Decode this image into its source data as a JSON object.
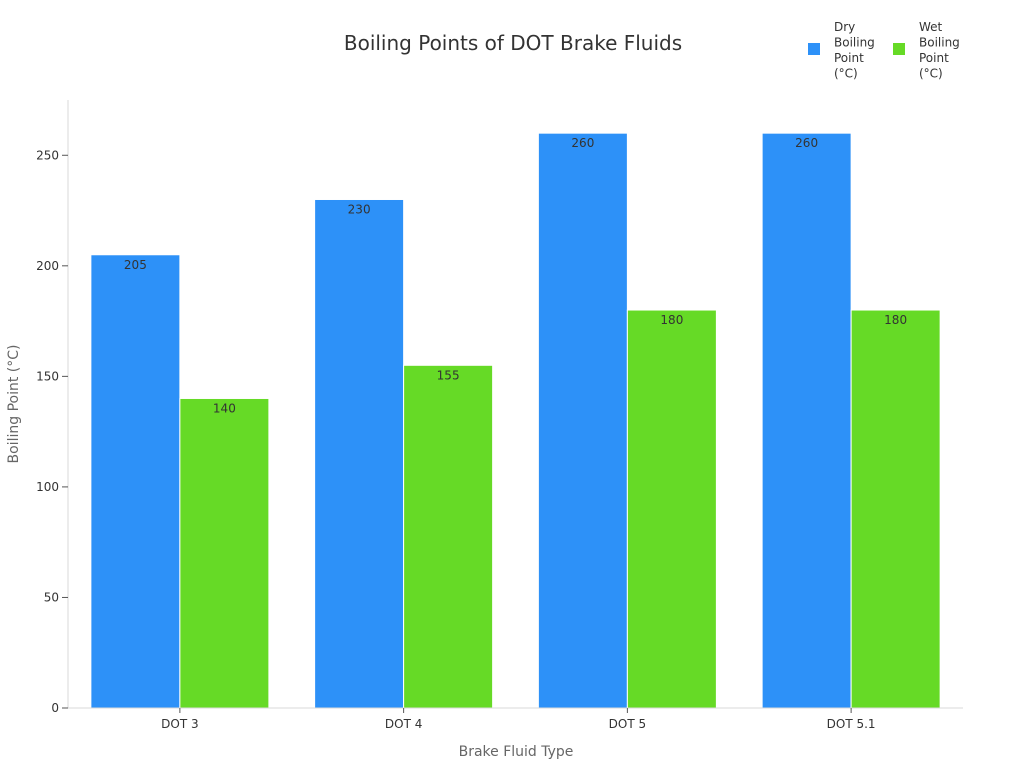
{
  "chart_data": {
    "type": "bar",
    "title": "Boiling Points of DOT Brake Fluids",
    "xlabel": "Brake Fluid Type",
    "ylabel": "Boiling Point (°C)",
    "categories": [
      "DOT 3",
      "DOT 4",
      "DOT 5",
      "DOT 5.1"
    ],
    "series": [
      {
        "name": "Dry Boiling Point (°C)",
        "legend_lines": [
          "Dry",
          "Boiling",
          "Point",
          "(°C)"
        ],
        "color": "#2d91f8",
        "values": [
          205,
          230,
          260,
          260
        ]
      },
      {
        "name": "Wet Boiling Point (°C)",
        "legend_lines": [
          "Wet",
          "Boiling",
          "Point",
          "(°C)"
        ],
        "color": "#66da26",
        "values": [
          140,
          155,
          180,
          180
        ]
      }
    ],
    "ylim": [
      0,
      275
    ],
    "yticks": [
      0,
      50,
      100,
      150,
      200,
      250
    ],
    "grid": false,
    "legend_position": "top-right",
    "data_labels": true
  }
}
